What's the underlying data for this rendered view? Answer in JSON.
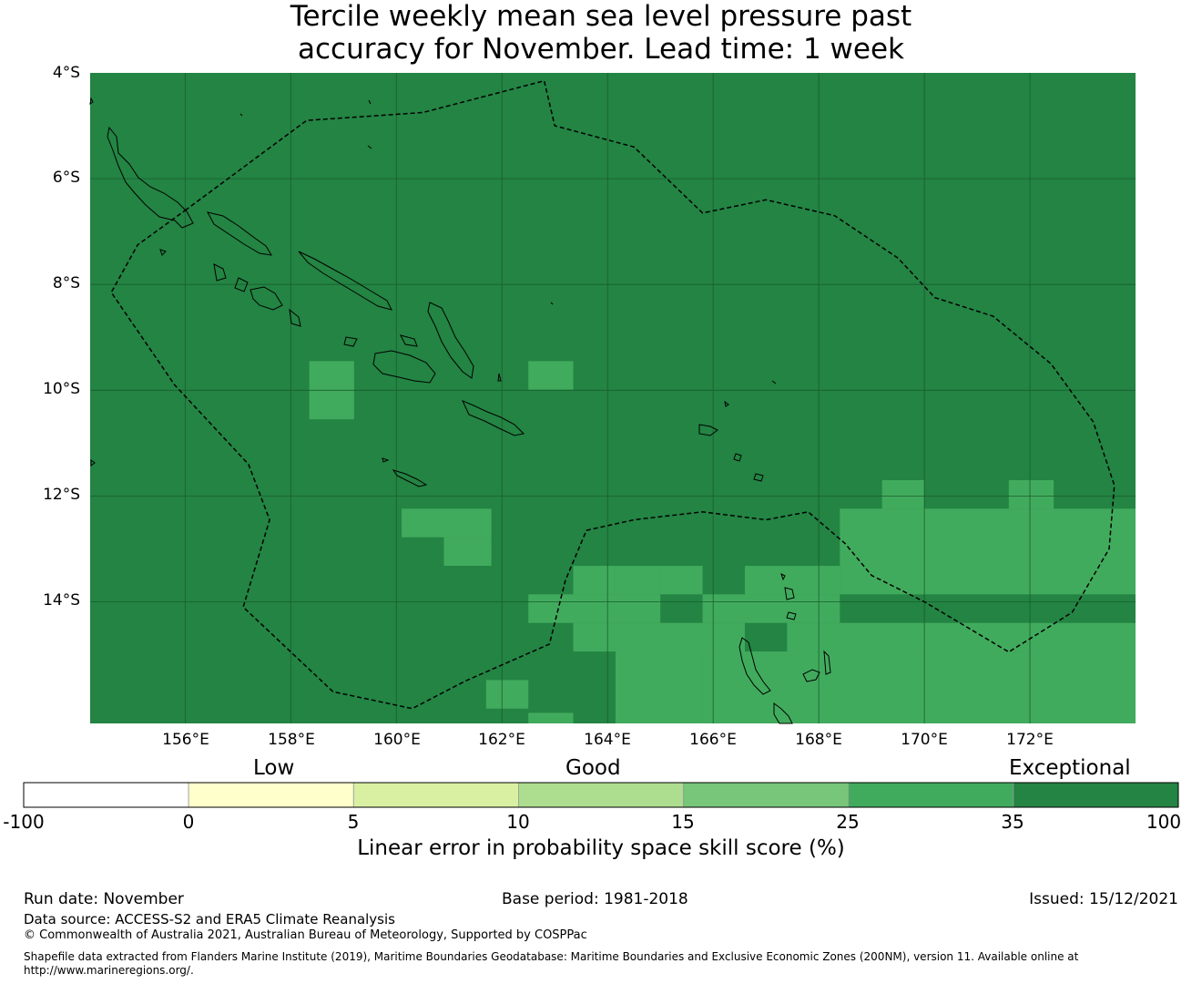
{
  "title": {
    "line1": "Tercile weekly mean sea level pressure past",
    "line2": "accuracy for November. Lead time: 1 week"
  },
  "map": {
    "lat_labels": [
      "4°S",
      "6°S",
      "8°S",
      "10°S",
      "12°S",
      "14°S"
    ],
    "lon_labels": [
      "156°E",
      "158°E",
      "160°E",
      "162°E",
      "164°E",
      "166°E",
      "168°E",
      "170°E",
      "172°E"
    ],
    "lon_range": [
      154.2,
      174.0
    ],
    "lat_range": [
      -4.0,
      -16.3
    ],
    "colors": {
      "exceptional": "#238443",
      "very_good": "#41ab5d",
      "eez_line": "#000000",
      "coast": "#000000"
    },
    "skill_cells_25_35": [
      [
        -9.45,
        158.35,
        159.2,
        -10.55
      ],
      [
        -9.45,
        162.5,
        163.35,
        -9.99
      ],
      [
        -12.24,
        160.1,
        161.8,
        -12.78
      ],
      [
        -12.78,
        160.9,
        161.8,
        -13.32
      ],
      [
        -12.24,
        168.4,
        174.0,
        -13.86
      ],
      [
        -11.7,
        169.2,
        170.0,
        -12.24
      ],
      [
        -11.7,
        171.6,
        172.45,
        -12.24
      ],
      [
        -13.32,
        163.35,
        164.15,
        -13.86
      ],
      [
        -13.32,
        164.15,
        165.0,
        -13.86
      ],
      [
        -13.32,
        165.0,
        165.8,
        -13.86
      ],
      [
        -13.32,
        166.6,
        168.4,
        -13.86
      ],
      [
        -13.86,
        162.5,
        165.0,
        -14.4
      ],
      [
        -14.4,
        163.35,
        166.6,
        -14.94
      ],
      [
        -13.86,
        165.8,
        168.4,
        -14.4
      ],
      [
        -14.4,
        167.4,
        174.0,
        -14.94
      ],
      [
        -14.94,
        165.8,
        174.0,
        -16.3
      ],
      [
        -14.94,
        164.15,
        165.8,
        -16.3
      ],
      [
        -15.48,
        161.7,
        162.5,
        -16.02
      ],
      [
        -16.1,
        162.5,
        163.35,
        -16.3
      ]
    ],
    "eez_boundary_lonlat": [
      [
        156.0,
        -6.6
      ],
      [
        158.3,
        -4.9
      ],
      [
        160.5,
        -4.75
      ],
      [
        162.8,
        -4.15
      ],
      [
        163.0,
        -5.0
      ],
      [
        164.5,
        -5.4
      ],
      [
        165.8,
        -6.65
      ],
      [
        167.0,
        -6.4
      ],
      [
        168.3,
        -6.7
      ],
      [
        169.5,
        -7.5
      ],
      [
        170.2,
        -8.25
      ],
      [
        171.3,
        -8.6
      ],
      [
        172.4,
        -9.5
      ],
      [
        173.2,
        -10.6
      ],
      [
        173.6,
        -11.8
      ],
      [
        173.5,
        -13.0
      ],
      [
        172.8,
        -14.2
      ],
      [
        171.6,
        -14.95
      ],
      [
        170.0,
        -14.0
      ],
      [
        169.0,
        -13.5
      ],
      [
        168.5,
        -12.9
      ],
      [
        167.8,
        -12.3
      ],
      [
        167.0,
        -12.45
      ],
      [
        165.8,
        -12.3
      ],
      [
        164.5,
        -12.45
      ],
      [
        163.6,
        -12.65
      ],
      [
        163.2,
        -13.6
      ],
      [
        162.9,
        -14.8
      ],
      [
        161.3,
        -15.5
      ],
      [
        160.3,
        -16.02
      ],
      [
        158.8,
        -15.7
      ],
      [
        157.1,
        -14.1
      ],
      [
        157.6,
        -12.45
      ],
      [
        157.2,
        -11.4
      ],
      [
        155.8,
        -9.9
      ],
      [
        154.6,
        -8.15
      ],
      [
        155.1,
        -7.25
      ],
      [
        156.0,
        -6.6
      ]
    ]
  },
  "colorbar": {
    "category_labels": [
      "Low",
      "Good",
      "Exceptional"
    ],
    "ticks": [
      "-100",
      "0",
      "5",
      "10",
      "15",
      "25",
      "35",
      "100"
    ],
    "colors": [
      "#ffffff",
      "#ffffcc",
      "#d9f0a3",
      "#addd8e",
      "#78c679",
      "#41ab5d",
      "#238443"
    ],
    "title": "Linear error in probability space skill score (%)"
  },
  "footer": {
    "run_date": "Run date: November",
    "base_period": "Base period: 1981-2018",
    "issued": "Issued: 15/12/2021",
    "data_source": "Data source: ACCESS-S2 and ERA5 Climate Reanalysis",
    "copyright": "© Commonwealth of Australia 2021, Australian Bureau of Meteorology, Supported by COSPPac",
    "shapefile_line1": "Shapefile data extracted from Flanders Marine Institute (2019), Maritime Boundaries Geodatabase: Maritime Boundaries and Exclusive Economic Zones (200NM), version 11. Available online at",
    "shapefile_line2": "http://www.marineregions.org/."
  }
}
